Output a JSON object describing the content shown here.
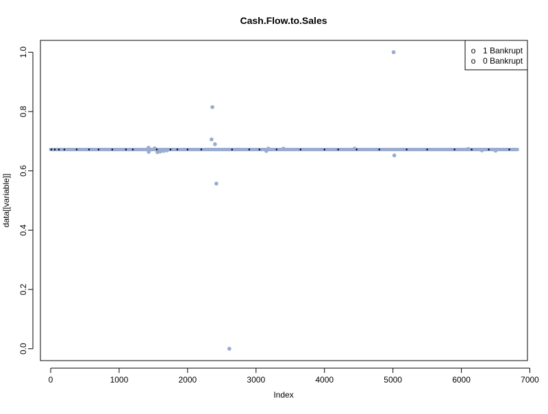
{
  "chart_data": {
    "type": "scatter",
    "title": "Cash.Flow.to.Sales",
    "xlabel": "Index",
    "ylabel": "data[[variable]]",
    "xlim": [
      -150,
      6965
    ],
    "ylim": [
      -0.04,
      1.04
    ],
    "x_ticks": [
      0,
      1000,
      2000,
      3000,
      4000,
      5000,
      6000,
      7000
    ],
    "y_ticks": [
      0.0,
      0.2,
      0.4,
      0.6,
      0.8,
      1.0
    ],
    "x_tick_labels": [
      "0",
      "1000",
      "2000",
      "3000",
      "4000",
      "5000",
      "6000",
      "7000"
    ],
    "y_tick_labels": [
      "0.0",
      "0.2",
      "0.4",
      "0.6",
      "0.8",
      "1.0"
    ],
    "grid": false,
    "legend_position": "top-right",
    "legend": [
      {
        "marker": "o",
        "label": "1 Bankrupt"
      },
      {
        "marker": "o",
        "label": "0 Bankrupt"
      }
    ],
    "colors": {
      "bankrupt_0": "#9aadd0",
      "bankrupt_1": "#000000"
    },
    "baseline_value": 0.672,
    "n_observations": 6819,
    "series": [
      {
        "legend_label": "0 Bankrupt",
        "color": "#9aadd0",
        "points": [
          [
            1430,
            0.678
          ],
          [
            1432,
            0.664
          ],
          [
            1440,
            0.669
          ],
          [
            1520,
            0.676
          ],
          [
            1560,
            0.663
          ],
          [
            1600,
            0.665
          ],
          [
            1650,
            0.667
          ],
          [
            1700,
            0.669
          ],
          [
            2350,
            0.706
          ],
          [
            2362,
            0.815
          ],
          [
            2400,
            0.69
          ],
          [
            2420,
            0.557
          ],
          [
            2610,
            0.0
          ],
          [
            3150,
            0.667
          ],
          [
            3180,
            0.675
          ],
          [
            3400,
            0.675
          ],
          [
            4440,
            0.675
          ],
          [
            5010,
            1.0
          ],
          [
            5020,
            0.652
          ],
          [
            6100,
            0.674
          ],
          [
            6300,
            0.669
          ],
          [
            6500,
            0.668
          ]
        ]
      },
      {
        "legend_label": "1 Bankrupt",
        "color": "#000000",
        "points": [
          [
            10,
            0.672
          ],
          [
            60,
            0.672
          ],
          [
            120,
            0.672
          ],
          [
            200,
            0.672
          ],
          [
            380,
            0.672
          ],
          [
            560,
            0.672
          ],
          [
            700,
            0.672
          ],
          [
            900,
            0.672
          ],
          [
            1100,
            0.672
          ],
          [
            1200,
            0.672
          ],
          [
            1550,
            0.672
          ],
          [
            1750,
            0.672
          ],
          [
            1850,
            0.672
          ],
          [
            2000,
            0.672
          ],
          [
            2200,
            0.672
          ],
          [
            2650,
            0.672
          ],
          [
            2900,
            0.672
          ],
          [
            3050,
            0.672
          ],
          [
            3300,
            0.672
          ],
          [
            3650,
            0.672
          ],
          [
            4000,
            0.672
          ],
          [
            4200,
            0.672
          ],
          [
            4470,
            0.672
          ],
          [
            4800,
            0.672
          ],
          [
            5200,
            0.672
          ],
          [
            5500,
            0.672
          ],
          [
            5900,
            0.672
          ],
          [
            6150,
            0.672
          ],
          [
            6400,
            0.672
          ],
          [
            6700,
            0.672
          ]
        ]
      }
    ]
  }
}
